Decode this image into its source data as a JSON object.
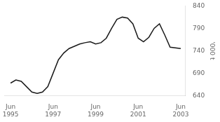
{
  "chart_data": {
    "type": "line",
    "ylabel": "'000 t",
    "x": [
      1995.5,
      1995.75,
      1996.0,
      1996.25,
      1996.5,
      1996.75,
      1997.0,
      1997.25,
      1997.5,
      1997.75,
      1998.0,
      1998.25,
      1998.5,
      1998.75,
      1999.0,
      1999.25,
      1999.5,
      1999.75,
      2000.0,
      2000.25,
      2000.5,
      2000.75,
      2001.0,
      2001.25,
      2001.5,
      2001.75,
      2002.0,
      2002.25,
      2002.5,
      2002.75,
      2003.0,
      2003.5
    ],
    "values": [
      668,
      675,
      672,
      660,
      648,
      645,
      648,
      660,
      690,
      720,
      735,
      745,
      750,
      755,
      758,
      760,
      755,
      758,
      768,
      790,
      810,
      815,
      813,
      800,
      768,
      760,
      770,
      790,
      800,
      775,
      748,
      745
    ],
    "color": "#1a1a1a",
    "xlim": [
      1995.2,
      2003.7
    ],
    "xticks": [
      {
        "value": 1995.5,
        "label": "Jun\n1995"
      },
      {
        "value": 1997.5,
        "label": "Jun\n1997"
      },
      {
        "value": 1999.5,
        "label": "Jun\n1999"
      },
      {
        "value": 2001.5,
        "label": "Jun\n2001"
      },
      {
        "value": 2003.5,
        "label": "Jun\n2003"
      }
    ],
    "ylim": [
      640,
      840
    ],
    "yticks": [
      640,
      690,
      740,
      790,
      840
    ],
    "grid": false
  }
}
